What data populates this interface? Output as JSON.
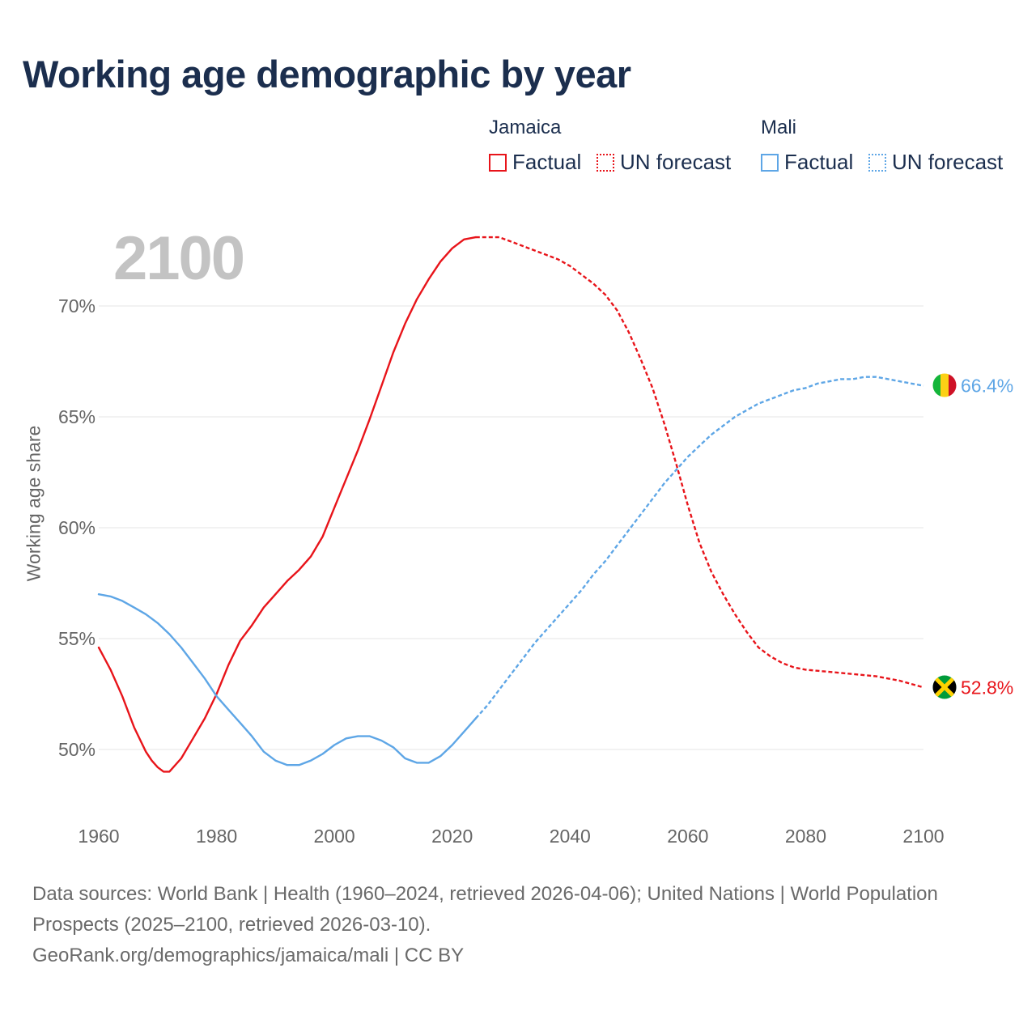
{
  "title": "Working age demographic by year",
  "year_display": "2100",
  "legend": {
    "groups": [
      {
        "name": "Jamaica",
        "factual_label": "Factual",
        "forecast_label": "UN forecast",
        "color": "#e8141a"
      },
      {
        "name": "Mali",
        "factual_label": "Factual",
        "forecast_label": "UN forecast",
        "color": "#5ea6e6"
      }
    ]
  },
  "chart_data": {
    "type": "line",
    "title": "Working age demographic by year",
    "xlabel": "",
    "ylabel": "Working age share",
    "xlim": [
      1960,
      2100
    ],
    "ylim": [
      47,
      74
    ],
    "x_ticks": [
      1960,
      1980,
      2000,
      2020,
      2040,
      2060,
      2080,
      2100
    ],
    "y_ticks": [
      50,
      55,
      60,
      65,
      70
    ],
    "y_tick_labels": [
      "50%",
      "55%",
      "60%",
      "65%",
      "70%"
    ],
    "grid": true,
    "forecast_start_year": 2024,
    "series": [
      {
        "name": "Jamaica",
        "color": "#e8141a",
        "end_label": "52.8%",
        "points": [
          [
            1960,
            54.6
          ],
          [
            1962,
            53.6
          ],
          [
            1964,
            52.4
          ],
          [
            1966,
            51.0
          ],
          [
            1968,
            49.9
          ],
          [
            1969,
            49.5
          ],
          [
            1970,
            49.2
          ],
          [
            1971,
            49.0
          ],
          [
            1972,
            49.0
          ],
          [
            1974,
            49.6
          ],
          [
            1976,
            50.5
          ],
          [
            1978,
            51.4
          ],
          [
            1980,
            52.5
          ],
          [
            1982,
            53.8
          ],
          [
            1984,
            54.9
          ],
          [
            1986,
            55.6
          ],
          [
            1988,
            56.4
          ],
          [
            1990,
            57.0
          ],
          [
            1992,
            57.6
          ],
          [
            1994,
            58.1
          ],
          [
            1996,
            58.7
          ],
          [
            1998,
            59.6
          ],
          [
            2000,
            60.9
          ],
          [
            2002,
            62.2
          ],
          [
            2004,
            63.5
          ],
          [
            2006,
            64.9
          ],
          [
            2008,
            66.4
          ],
          [
            2010,
            67.9
          ],
          [
            2012,
            69.2
          ],
          [
            2014,
            70.3
          ],
          [
            2016,
            71.2
          ],
          [
            2018,
            72.0
          ],
          [
            2020,
            72.6
          ],
          [
            2022,
            73.0
          ],
          [
            2024,
            73.1
          ],
          [
            2026,
            73.1
          ],
          [
            2028,
            73.1
          ],
          [
            2030,
            72.9
          ],
          [
            2032,
            72.7
          ],
          [
            2034,
            72.5
          ],
          [
            2036,
            72.3
          ],
          [
            2038,
            72.1
          ],
          [
            2040,
            71.8
          ],
          [
            2042,
            71.4
          ],
          [
            2044,
            71.0
          ],
          [
            2046,
            70.5
          ],
          [
            2048,
            69.8
          ],
          [
            2050,
            68.8
          ],
          [
            2052,
            67.6
          ],
          [
            2054,
            66.3
          ],
          [
            2056,
            64.7
          ],
          [
            2058,
            62.9
          ],
          [
            2060,
            61.0
          ],
          [
            2062,
            59.3
          ],
          [
            2064,
            58.0
          ],
          [
            2066,
            57.0
          ],
          [
            2068,
            56.1
          ],
          [
            2070,
            55.3
          ],
          [
            2072,
            54.6
          ],
          [
            2074,
            54.2
          ],
          [
            2076,
            53.9
          ],
          [
            2078,
            53.7
          ],
          [
            2080,
            53.6
          ],
          [
            2084,
            53.5
          ],
          [
            2088,
            53.4
          ],
          [
            2092,
            53.3
          ],
          [
            2096,
            53.1
          ],
          [
            2100,
            52.8
          ]
        ]
      },
      {
        "name": "Mali",
        "color": "#5ea6e6",
        "end_label": "66.4%",
        "points": [
          [
            1960,
            57.0
          ],
          [
            1962,
            56.9
          ],
          [
            1964,
            56.7
          ],
          [
            1966,
            56.4
          ],
          [
            1968,
            56.1
          ],
          [
            1970,
            55.7
          ],
          [
            1972,
            55.2
          ],
          [
            1974,
            54.6
          ],
          [
            1976,
            53.9
          ],
          [
            1978,
            53.2
          ],
          [
            1980,
            52.4
          ],
          [
            1982,
            51.8
          ],
          [
            1984,
            51.2
          ],
          [
            1986,
            50.6
          ],
          [
            1988,
            49.9
          ],
          [
            1990,
            49.5
          ],
          [
            1992,
            49.3
          ],
          [
            1994,
            49.3
          ],
          [
            1996,
            49.5
          ],
          [
            1998,
            49.8
          ],
          [
            2000,
            50.2
          ],
          [
            2002,
            50.5
          ],
          [
            2004,
            50.6
          ],
          [
            2006,
            50.6
          ],
          [
            2008,
            50.4
          ],
          [
            2010,
            50.1
          ],
          [
            2012,
            49.6
          ],
          [
            2014,
            49.4
          ],
          [
            2016,
            49.4
          ],
          [
            2018,
            49.7
          ],
          [
            2020,
            50.2
          ],
          [
            2022,
            50.8
          ],
          [
            2024,
            51.4
          ],
          [
            2026,
            52.0
          ],
          [
            2028,
            52.7
          ],
          [
            2030,
            53.4
          ],
          [
            2032,
            54.1
          ],
          [
            2034,
            54.8
          ],
          [
            2036,
            55.4
          ],
          [
            2038,
            56.0
          ],
          [
            2040,
            56.6
          ],
          [
            2042,
            57.2
          ],
          [
            2044,
            57.9
          ],
          [
            2046,
            58.5
          ],
          [
            2048,
            59.2
          ],
          [
            2050,
            59.9
          ],
          [
            2052,
            60.6
          ],
          [
            2054,
            61.3
          ],
          [
            2056,
            62.0
          ],
          [
            2058,
            62.6
          ],
          [
            2060,
            63.2
          ],
          [
            2062,
            63.7
          ],
          [
            2064,
            64.2
          ],
          [
            2066,
            64.6
          ],
          [
            2068,
            65.0
          ],
          [
            2070,
            65.3
          ],
          [
            2072,
            65.6
          ],
          [
            2074,
            65.8
          ],
          [
            2076,
            66.0
          ],
          [
            2078,
            66.2
          ],
          [
            2080,
            66.3
          ],
          [
            2082,
            66.5
          ],
          [
            2084,
            66.6
          ],
          [
            2086,
            66.7
          ],
          [
            2088,
            66.7
          ],
          [
            2090,
            66.8
          ],
          [
            2092,
            66.8
          ],
          [
            2094,
            66.7
          ],
          [
            2096,
            66.6
          ],
          [
            2098,
            66.5
          ],
          [
            2100,
            66.4
          ]
        ]
      }
    ]
  },
  "footer": {
    "line1": "Data sources: World Bank | Health (1960–2024, retrieved 2026-04-06); United Nations | World Population Prospects (2025–2100, retrieved 2026-03-10).",
    "line2": "GeoRank.org/demographics/jamaica/mali | CC BY"
  }
}
